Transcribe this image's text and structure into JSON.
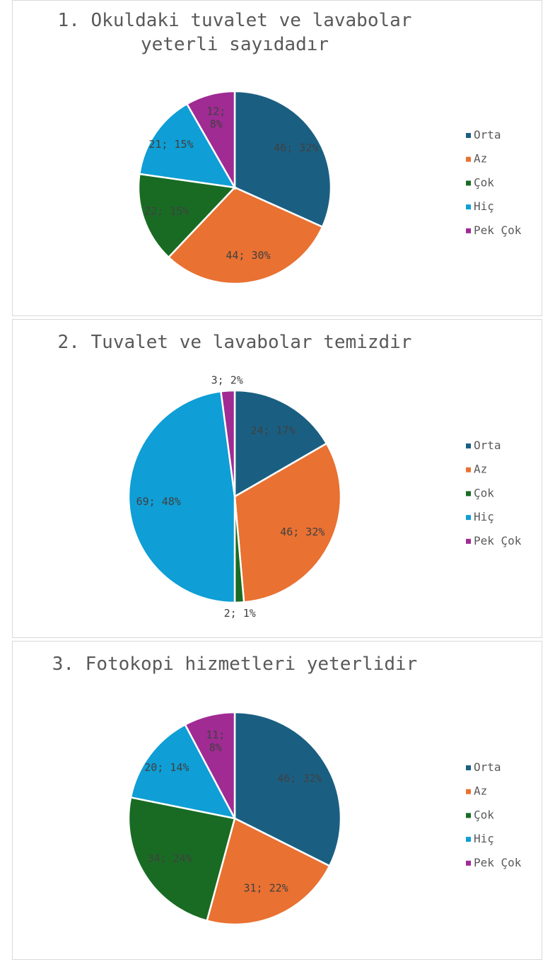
{
  "colors": {
    "Orta": "#1a5f82",
    "Az": "#e97132",
    "Çok": "#196b24",
    "Hiç": "#0f9ed5",
    "Pek Çok": "#a02b93"
  },
  "chart_data": [
    {
      "type": "pie",
      "title_lines": [
        "1. Okuldaki tuvalet ve lavabolar",
        "yeterli sayıdadır"
      ],
      "categories": [
        "Orta",
        "Az",
        "Çok",
        "Hiç",
        "Pek Çok"
      ],
      "values": [
        46,
        44,
        22,
        21,
        12
      ],
      "labels": [
        "46; 32%",
        "44; 30%",
        "22; 15%",
        "21; 15%",
        "12;\n8%"
      ],
      "legend": [
        "Orta",
        "Az",
        "Çok",
        "Hiç",
        "Pek Çok"
      ],
      "legend_position": "right"
    },
    {
      "type": "pie",
      "title_lines": [
        "2. Tuvalet ve lavabolar temizdir"
      ],
      "categories": [
        "Orta",
        "Az",
        "Çok",
        "Hiç",
        "Pek Çok"
      ],
      "values": [
        24,
        46,
        2,
        69,
        3
      ],
      "labels": [
        "24; 17%",
        "46; 32%",
        "2; 1%",
        "69; 48%",
        "3; 2%"
      ],
      "legend": [
        "Orta",
        "Az",
        "Çok",
        "Hiç",
        "Pek Çok"
      ],
      "legend_position": "right"
    },
    {
      "type": "pie",
      "title_lines": [
        "3. Fotokopi hizmetleri yeterlidir"
      ],
      "categories": [
        "Orta",
        "Az",
        "Çok",
        "Hiç",
        "Pek Çok"
      ],
      "values": [
        46,
        31,
        34,
        20,
        11
      ],
      "labels": [
        "46; 32%",
        "31; 22%",
        "34; 24%",
        "20; 14%",
        "11;\n8%"
      ],
      "legend": [
        "Orta",
        "Az",
        "Çok",
        "Hiç",
        "Pek Çok"
      ],
      "legend_position": "right"
    }
  ]
}
